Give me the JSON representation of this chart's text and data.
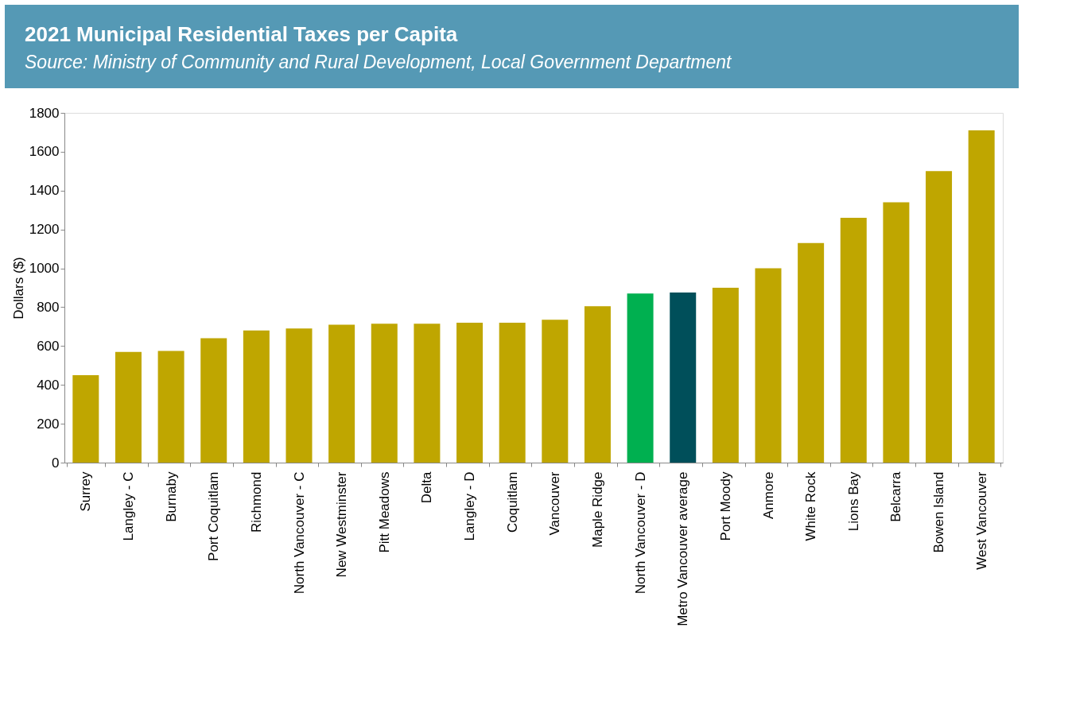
{
  "chart_data": {
    "type": "bar",
    "title": "2021 Municipal Residential Taxes per Capita",
    "subtitle": "Source: Ministry of Community and Rural Development, Local Government Department",
    "ylabel": "Dollars ($)",
    "categories": [
      "Surrey",
      "Langley - C",
      "Burnaby",
      "Port Coquitlam",
      "Richmond",
      "North Vancouver - C",
      "New Westminster",
      "Pitt Meadows",
      "Delta",
      "Langley - D",
      "Coquitlam",
      "Vancouver",
      "Maple Ridge",
      "North Vancouver - D",
      "Metro Vancouver average",
      "Port Moody",
      "Anmore",
      "White Rock",
      "Lions Bay",
      "Belcarra",
      "Bowen Island",
      "West Vancouver"
    ],
    "values": [
      450,
      570,
      575,
      640,
      680,
      690,
      710,
      715,
      715,
      720,
      720,
      735,
      805,
      870,
      875,
      900,
      1000,
      1130,
      1260,
      1340,
      1500,
      1710
    ],
    "colors": [
      "#bfa600",
      "#bfa600",
      "#bfa600",
      "#bfa600",
      "#bfa600",
      "#bfa600",
      "#bfa600",
      "#bfa600",
      "#bfa600",
      "#bfa600",
      "#bfa600",
      "#bfa600",
      "#bfa600",
      "#00b050",
      "#004f5a",
      "#bfa600",
      "#bfa600",
      "#bfa600",
      "#bfa600",
      "#bfa600",
      "#bfa600",
      "#bfa600"
    ],
    "ylim": [
      0,
      1800
    ],
    "yticks": [
      0,
      200,
      400,
      600,
      800,
      1000,
      1200,
      1400,
      1600,
      1800
    ],
    "grid": false
  }
}
